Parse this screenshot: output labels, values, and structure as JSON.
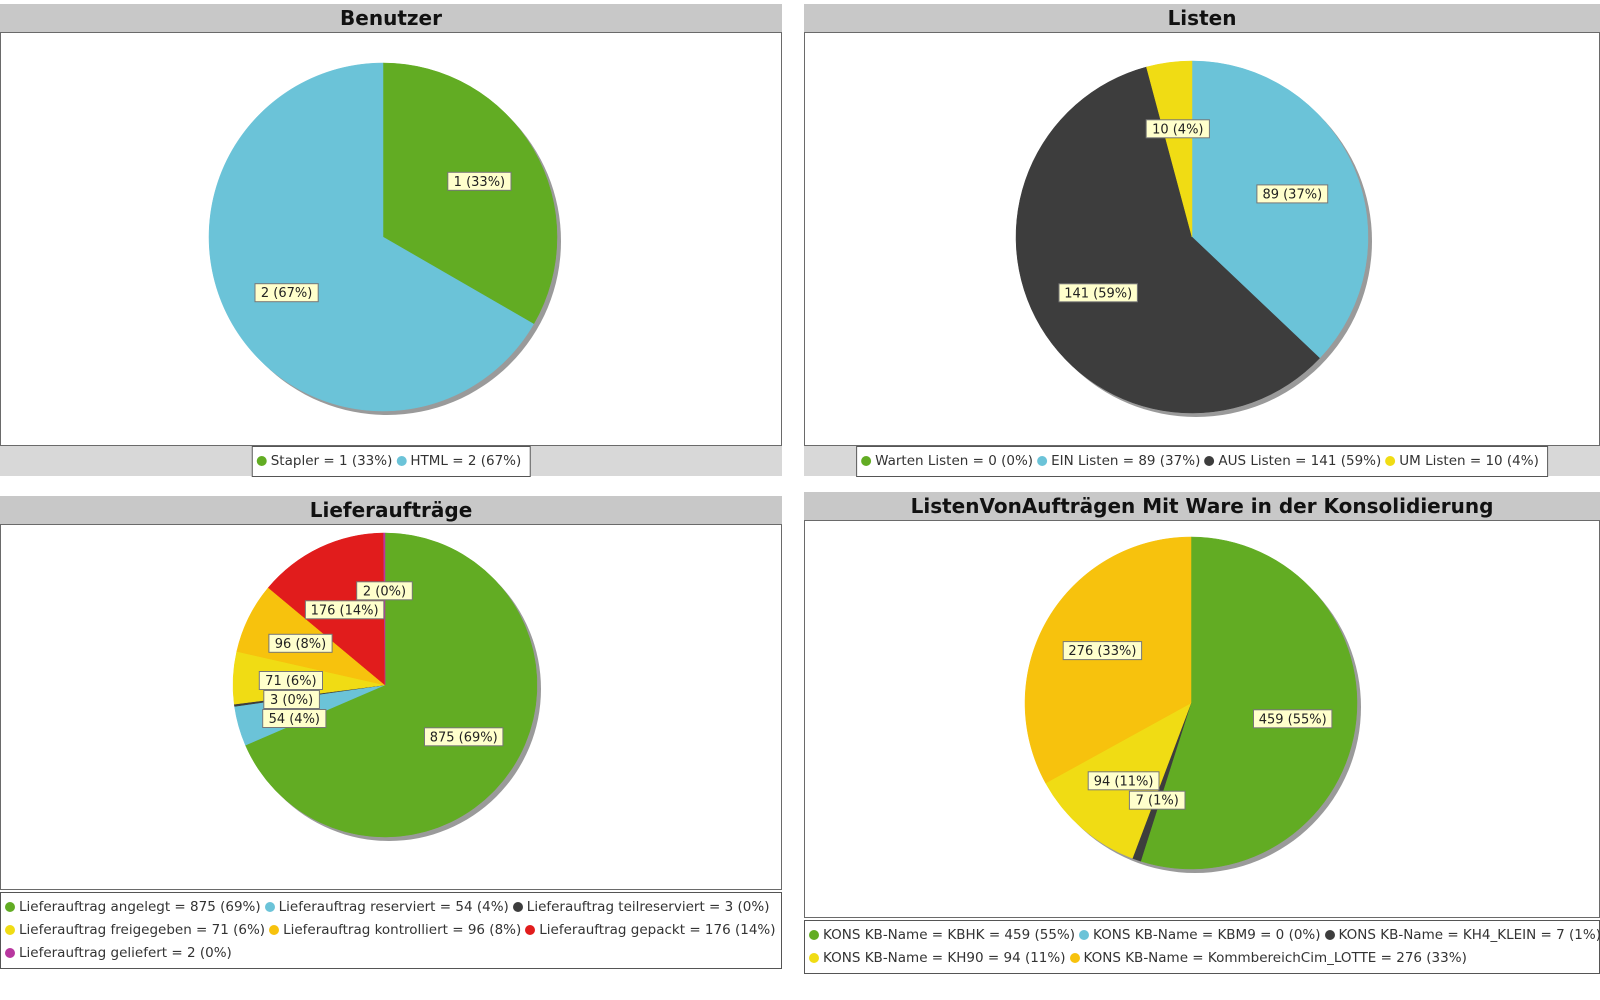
{
  "chart_data": [
    {
      "type": "pie",
      "title": "Benutzer",
      "slices": [
        {
          "name": "Stapler",
          "value": 1,
          "percent": "33%",
          "color": "#62ac23",
          "label": "1 (33%)"
        },
        {
          "name": "HTML",
          "value": 2,
          "percent": "67%",
          "color": "#6bc3d8",
          "label": "2 (67%)"
        }
      ],
      "legend_rows": [
        [
          "Stapler = 1 (33%)",
          "HTML = 2 (67%)"
        ]
      ]
    },
    {
      "type": "pie",
      "title": "Listen",
      "slices": [
        {
          "name": "Warten Listen",
          "value": 0,
          "percent": "0%",
          "color": "#62ac23",
          "label": ""
        },
        {
          "name": "EIN Listen",
          "value": 89,
          "percent": "37%",
          "color": "#6bc3d8",
          "label": "89 (37%)"
        },
        {
          "name": "AUS Listen",
          "value": 141,
          "percent": "59%",
          "color": "#3d3d3d",
          "label": "141 (59%)"
        },
        {
          "name": "UM Listen",
          "value": 10,
          "percent": "4%",
          "color": "#f0dc14",
          "label": "10 (4%)"
        }
      ],
      "legend_rows": [
        [
          "Warten Listen = 0 (0%)",
          "EIN Listen = 89 (37%)",
          "AUS Listen = 141 (59%)",
          "UM Listen = 10 (4%)"
        ]
      ]
    },
    {
      "type": "pie",
      "title": "Lieferaufträge",
      "slices": [
        {
          "name": "Lieferauftrag angelegt",
          "value": 875,
          "percent": "69%",
          "color": "#62ac23",
          "label": "875 (69%)"
        },
        {
          "name": "Lieferauftrag reserviert",
          "value": 54,
          "percent": "4%",
          "color": "#6bc3d8",
          "label": "54 (4%)"
        },
        {
          "name": "Lieferauftrag teilreserviert",
          "value": 3,
          "percent": "0%",
          "color": "#3d3d3d",
          "label": "3 (0%)"
        },
        {
          "name": "Lieferauftrag freigegeben",
          "value": 71,
          "percent": "6%",
          "color": "#f0dc14",
          "label": "71 (6%)"
        },
        {
          "name": "Lieferauftrag kontrolliert",
          "value": 96,
          "percent": "8%",
          "color": "#f7c20d",
          "label": "96 (8%)"
        },
        {
          "name": "Lieferauftrag gepackt",
          "value": 176,
          "percent": "14%",
          "color": "#e11c1c",
          "label": "176 (14%)"
        },
        {
          "name": "Lieferauftrag geliefert",
          "value": 2,
          "percent": "0%",
          "color": "#b8379f",
          "label": "2 (0%)"
        }
      ],
      "legend_rows": [
        [
          "Lieferauftrag angelegt = 875 (69%)",
          "Lieferauftrag reserviert = 54 (4%)",
          "Lieferauftrag teilreserviert = 3 (0%)"
        ],
        [
          "Lieferauftrag freigegeben = 71 (6%)",
          "Lieferauftrag kontrolliert = 96 (8%)",
          "Lieferauftrag gepackt = 176 (14%)"
        ],
        [
          "Lieferauftrag geliefert = 2 (0%)"
        ]
      ]
    },
    {
      "type": "pie",
      "title": "ListenVonAufträgen Mit Ware in  der Konsolidierung",
      "slices": [
        {
          "name": "KONS KB-Name = KBHK",
          "value": 459,
          "percent": "55%",
          "color": "#62ac23",
          "label": "459 (55%)"
        },
        {
          "name": "KONS KB-Name = KBM9",
          "value": 0,
          "percent": "0%",
          "color": "#6bc3d8",
          "label": ""
        },
        {
          "name": "KONS KB-Name = KH4_KLEIN",
          "value": 7,
          "percent": "1%",
          "color": "#3d3d3d",
          "label": "7 (1%)"
        },
        {
          "name": "KONS KB-Name = KH90",
          "value": 94,
          "percent": "11%",
          "color": "#f0dc14",
          "label": "94 (11%)"
        },
        {
          "name": "KONS KB-Name = KommbereichCim_LOTTE",
          "value": 276,
          "percent": "33%",
          "color": "#f7c20d",
          "label": "276 (33%)"
        }
      ],
      "legend_rows": [
        [
          "KONS KB-Name = KBHK = 459 (55%)",
          "KONS KB-Name = KBM9 = 0 (0%)",
          "KONS KB-Name = KH4_KLEIN = 7 (1%)"
        ],
        [
          "KONS KB-Name = KH90 = 94 (11%)",
          "KONS KB-Name = KommbereichCim_LOTTE = 276 (33%)"
        ]
      ]
    }
  ]
}
